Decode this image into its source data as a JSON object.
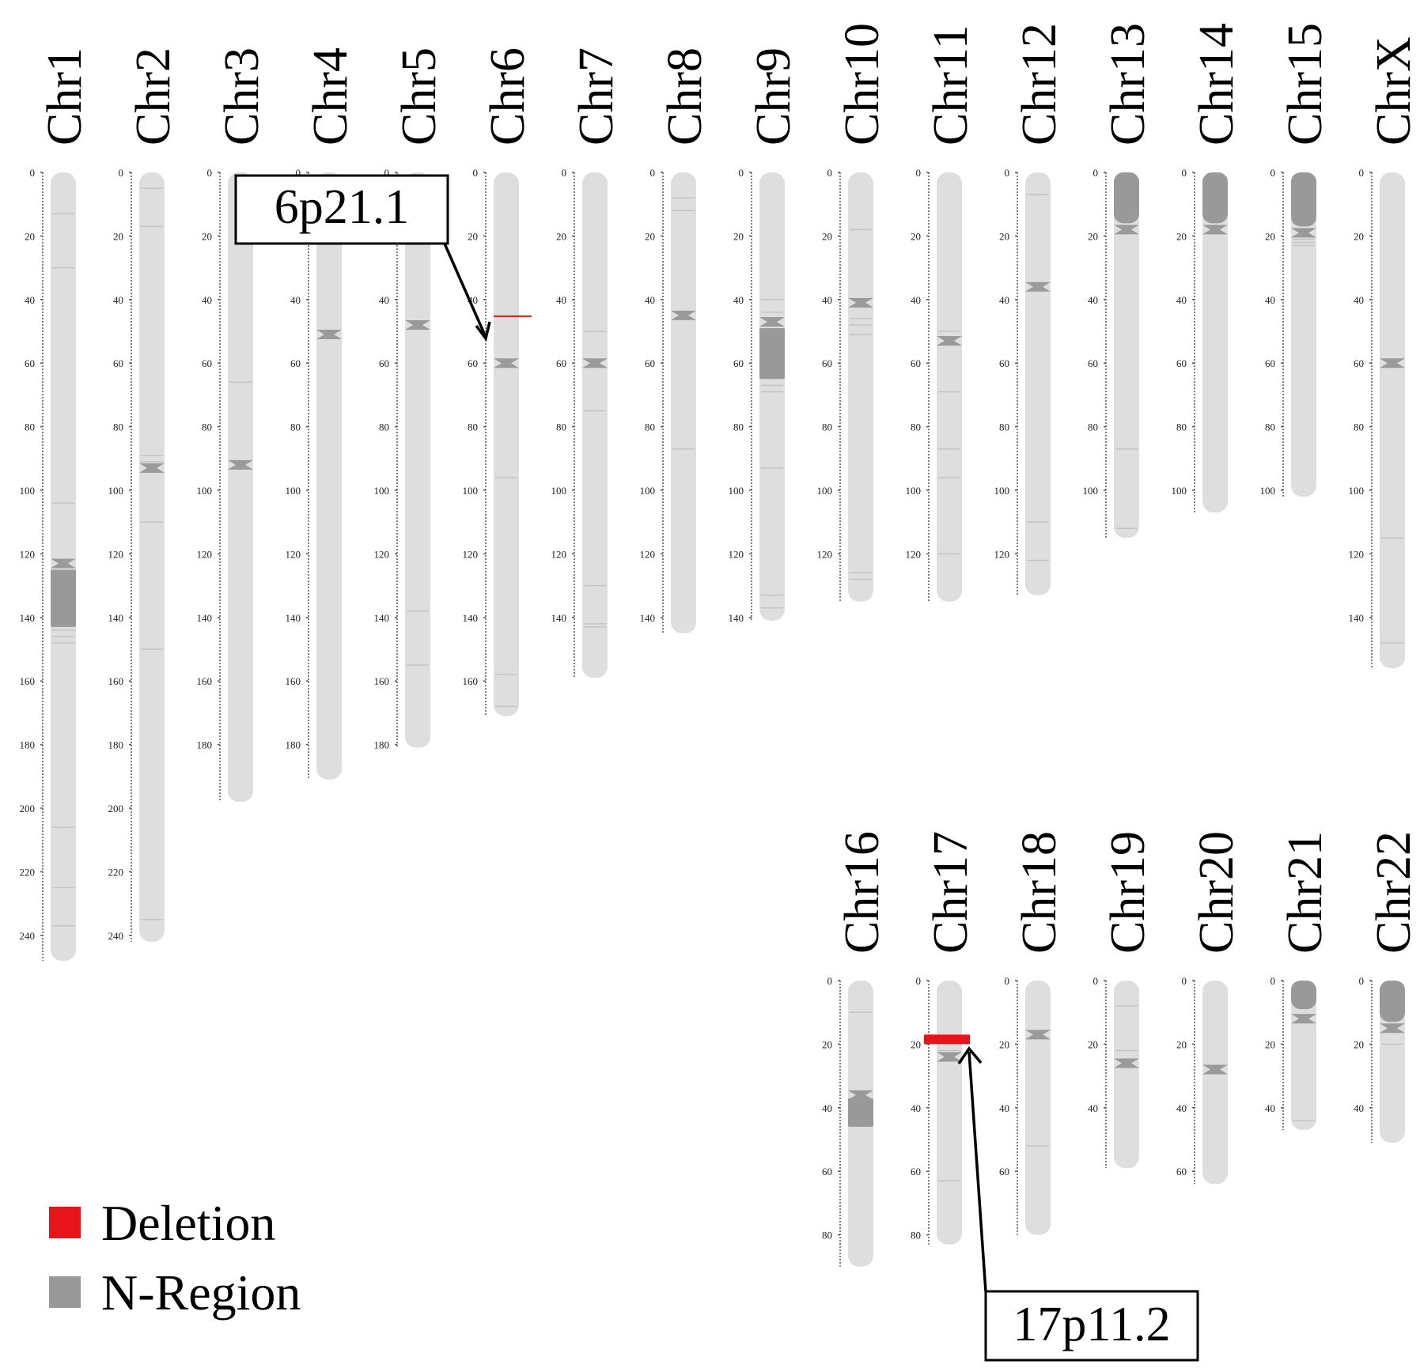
{
  "figure": {
    "top_row": [
      "Chr1",
      "Chr2",
      "Chr3",
      "Chr4",
      "Chr5",
      "Chr6",
      "Chr7",
      "Chr8",
      "Chr9",
      "Chr10",
      "Chr11",
      "Chr12",
      "Chr13",
      "Chr14",
      "Chr15",
      "ChrX"
    ],
    "bottom_row": [
      "Chr16",
      "Chr17",
      "Chr18",
      "Chr19",
      "Chr20",
      "Chr21",
      "Chr22"
    ]
  },
  "chromosomes": {
    "Chr1": {
      "label": "Chr1",
      "length": 248,
      "ticks": [
        0,
        20,
        40,
        60,
        80,
        100,
        120,
        140,
        160,
        180,
        200,
        220,
        240
      ],
      "centromere": 123,
      "n_regions": [
        [
          125,
          143
        ]
      ],
      "bands": [
        13,
        30,
        104,
        144,
        146,
        148,
        206,
        225,
        237
      ]
    },
    "Chr2": {
      "label": "Chr2",
      "length": 242,
      "ticks": [
        0,
        20,
        40,
        60,
        80,
        100,
        120,
        140,
        160,
        180,
        200,
        220,
        240
      ],
      "centromere": 93,
      "n_regions": [],
      "bands": [
        5,
        17,
        89,
        91,
        110,
        150,
        235
      ]
    },
    "Chr3": {
      "label": "Chr3",
      "length": 198,
      "ticks": [
        0,
        20,
        40,
        60,
        80,
        100,
        120,
        140,
        160,
        180
      ],
      "centromere": 92,
      "n_regions": [],
      "bands": [
        66
      ]
    },
    "Chr4": {
      "label": "Chr4",
      "length": 191,
      "ticks": [
        0,
        20,
        40,
        60,
        80,
        100,
        120,
        140,
        160,
        180
      ],
      "centromere": 51,
      "n_regions": [],
      "bands": []
    },
    "Chr5": {
      "label": "Chr5",
      "length": 181,
      "ticks": [
        0,
        20,
        40,
        60,
        80,
        100,
        120,
        140,
        160,
        180
      ],
      "centromere": 48,
      "n_regions": [],
      "bands": [
        138,
        155
      ]
    },
    "Chr6": {
      "label": "Chr6",
      "length": 171,
      "ticks": [
        0,
        20,
        40,
        60,
        80,
        100,
        120,
        140,
        160
      ],
      "centromere": 60,
      "n_regions": [],
      "bands": [
        96,
        158,
        168
      ]
    },
    "Chr7": {
      "label": "Chr7",
      "length": 159,
      "ticks": [
        0,
        20,
        40,
        60,
        80,
        100,
        120,
        140
      ],
      "centromere": 60,
      "n_regions": [],
      "bands": [
        50,
        75,
        130,
        142,
        143
      ]
    },
    "Chr8": {
      "label": "Chr8",
      "length": 145,
      "ticks": [
        0,
        20,
        40,
        60,
        80,
        100,
        120,
        140
      ],
      "centromere": 45,
      "n_regions": [],
      "bands": [
        8,
        12,
        87
      ]
    },
    "Chr9": {
      "label": "Chr9",
      "length": 141,
      "ticks": [
        0,
        20,
        40,
        60,
        80,
        100,
        120,
        140
      ],
      "centromere": 47,
      "n_regions": [
        [
          49,
          65
        ]
      ],
      "bands": [
        40,
        44,
        67,
        69,
        93,
        133,
        137
      ]
    },
    "Chr10": {
      "label": "Chr10",
      "length": 135,
      "ticks": [
        0,
        20,
        40,
        60,
        80,
        100,
        120
      ],
      "centromere": 41,
      "n_regions": [],
      "bands": [
        18,
        46,
        48,
        51,
        126,
        128
      ]
    },
    "Chr11": {
      "label": "Chr11",
      "length": 135,
      "ticks": [
        0,
        20,
        40,
        60,
        80,
        100,
        120
      ],
      "centromere": 53,
      "n_regions": [],
      "bands": [
        50,
        69,
        87,
        96,
        120
      ]
    },
    "Chr12": {
      "label": "Chr12",
      "length": 133,
      "ticks": [
        0,
        20,
        40,
        60,
        80,
        100,
        120
      ],
      "centromere": 36,
      "n_regions": [],
      "bands": [
        7,
        110,
        122
      ]
    },
    "Chr13": {
      "label": "Chr13",
      "length": 115,
      "ticks": [
        0,
        20,
        40,
        60,
        80,
        100
      ],
      "centromere": 18,
      "n_regions": [
        [
          0,
          16
        ]
      ],
      "bands": [
        87,
        112
      ]
    },
    "Chr14": {
      "label": "Chr14",
      "length": 107,
      "ticks": [
        0,
        20,
        40,
        60,
        80,
        100
      ],
      "centromere": 18,
      "n_regions": [
        [
          0,
          16
        ]
      ],
      "bands": []
    },
    "Chr15": {
      "label": "Chr15",
      "length": 102,
      "ticks": [
        0,
        20,
        40,
        60,
        80,
        100
      ],
      "centromere": 19,
      "n_regions": [
        [
          0,
          17
        ]
      ],
      "bands": [
        21,
        22,
        23
      ]
    },
    "ChrX": {
      "label": "ChrX",
      "length": 156,
      "ticks": [
        0,
        20,
        40,
        60,
        80,
        100,
        120,
        140
      ],
      "centromere": 60,
      "n_regions": [],
      "bands": [
        115,
        148
      ]
    },
    "Chr16": {
      "label": "Chr16",
      "length": 90,
      "ticks": [
        0,
        20,
        40,
        60,
        80
      ],
      "centromere": 36,
      "n_regions": [
        [
          37,
          46
        ]
      ],
      "bands": [
        10,
        35
      ]
    },
    "Chr17": {
      "label": "Chr17",
      "length": 83,
      "ticks": [
        0,
        20,
        40,
        60,
        80
      ],
      "centromere": 24,
      "n_regions": [],
      "bands": [
        22,
        63
      ]
    },
    "Chr18": {
      "label": "Chr18",
      "length": 80,
      "ticks": [
        0,
        20,
        40,
        60
      ],
      "centromere": 17,
      "n_regions": [],
      "bands": [
        52
      ]
    },
    "Chr19": {
      "label": "Chr19",
      "length": 59,
      "ticks": [
        0,
        20,
        40
      ],
      "centromere": 26,
      "n_regions": [],
      "bands": [
        8,
        22
      ]
    },
    "Chr20": {
      "label": "Chr20",
      "length": 64,
      "ticks": [
        0,
        20,
        40,
        60
      ],
      "centromere": 28,
      "n_regions": [],
      "bands": []
    },
    "Chr21": {
      "label": "Chr21",
      "length": 47,
      "ticks": [
        0,
        20,
        40
      ],
      "centromere": 12,
      "n_regions": [
        [
          0,
          9
        ]
      ],
      "bands": [
        44
      ]
    },
    "Chr22": {
      "label": "Chr22",
      "length": 51,
      "ticks": [
        0,
        20,
        40
      ],
      "centromere": 15,
      "n_regions": [
        [
          0,
          13
        ]
      ],
      "bands": [
        20
      ]
    }
  },
  "deletions": [
    {
      "chromosome": "Chr6",
      "start": 45,
      "end": 45
    },
    {
      "chromosome": "Chr17",
      "start": 17,
      "end": 20
    }
  ],
  "annotations": [
    {
      "label": "6p21.1",
      "chromosome": "Chr6",
      "position": 45
    },
    {
      "label": "17p11.2",
      "chromosome": "Chr17",
      "position": 18
    }
  ],
  "legend": [
    {
      "label": "Deletion",
      "color": "#e8141b"
    },
    {
      "label": "N-Region",
      "color": "#999999"
    }
  ],
  "colors": {
    "chromosome_fill": "#dedede",
    "chromosome_band": "#c4c4c4",
    "centromere": "#9a9a9a",
    "n_region": "#999999",
    "deletion": "#e8141b",
    "axis": "#555555",
    "text": "#000000"
  }
}
